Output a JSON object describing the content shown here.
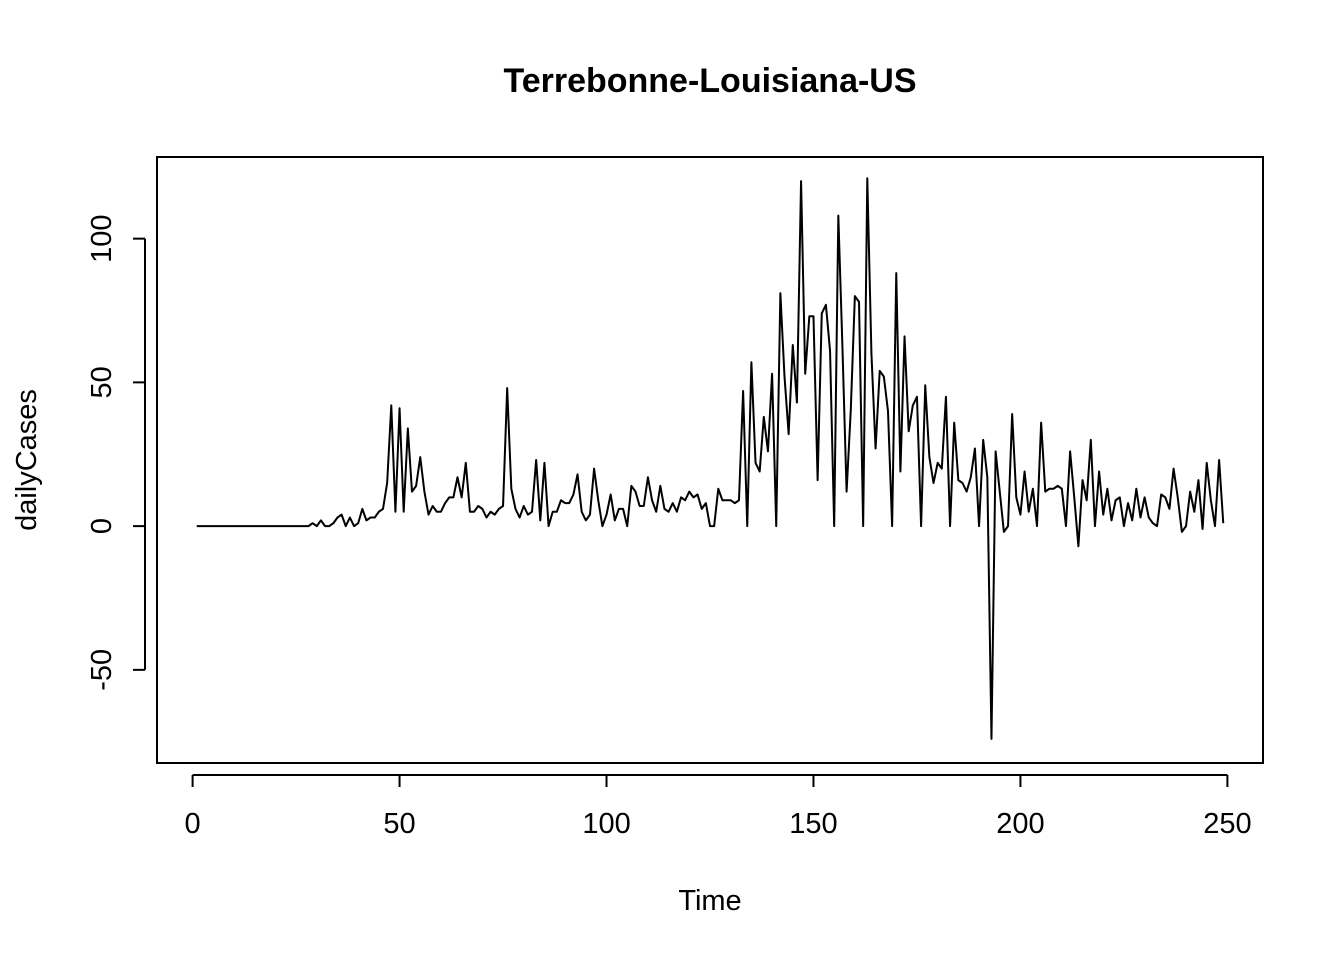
{
  "chart_data": {
    "type": "line",
    "title": "Terrebonne-Louisiana-US",
    "xlabel": "Time",
    "ylabel": "dailyCases",
    "xlim": [
      -8.6,
      258.6
    ],
    "ylim": [
      -82.4,
      128.4
    ],
    "x_ticks": [
      0,
      50,
      100,
      150,
      200,
      250
    ],
    "x_tick_labels": [
      "0",
      "50",
      "100",
      "150",
      "200",
      "250"
    ],
    "y_ticks": [
      -50,
      0,
      50,
      100
    ],
    "y_tick_labels": [
      "-50",
      "0",
      "50",
      "100"
    ],
    "grid": false,
    "legend": "none",
    "line_color": "#000000",
    "x_start": 1,
    "series": [
      {
        "values": [
          0,
          0,
          0,
          0,
          0,
          0,
          0,
          0,
          0,
          0,
          0,
          0,
          0,
          0,
          0,
          0,
          0,
          0,
          0,
          0,
          0,
          0,
          0,
          0,
          0,
          0,
          0,
          0,
          1,
          0,
          2,
          0,
          0,
          1,
          3,
          4,
          0,
          3,
          0,
          1,
          6,
          2,
          3,
          3,
          5,
          6,
          15,
          42,
          5,
          41,
          5,
          34,
          12,
          14,
          24,
          12,
          4,
          7,
          5,
          5,
          8,
          10,
          10,
          17,
          10,
          22,
          5,
          5,
          7,
          6,
          3,
          5,
          4,
          6,
          7,
          48,
          13,
          6,
          3,
          7,
          4,
          5,
          23,
          2,
          22,
          0,
          5,
          5,
          9,
          8,
          8,
          11,
          18,
          5,
          2,
          4,
          20,
          9,
          0,
          4,
          11,
          2,
          6,
          6,
          0,
          14,
          12,
          7,
          7,
          17,
          9,
          5,
          14,
          6,
          5,
          8,
          5,
          10,
          9,
          12,
          10,
          11,
          6,
          8,
          0,
          0,
          13,
          9,
          9,
          9,
          8,
          9,
          47,
          0,
          57,
          22,
          19,
          38,
          26,
          53,
          0,
          81,
          52,
          32,
          63,
          43,
          120,
          53,
          73,
          73,
          16,
          74,
          77,
          61,
          0,
          108,
          62,
          12,
          40,
          80,
          78,
          0,
          121,
          60,
          27,
          54,
          52,
          40,
          0,
          88,
          19,
          66,
          33,
          42,
          45,
          0,
          49,
          24,
          15,
          22,
          20,
          45,
          0,
          36,
          16,
          15,
          12,
          17,
          27,
          0,
          30,
          17,
          -74,
          26,
          12,
          -2,
          0,
          39,
          10,
          4,
          19,
          5,
          13,
          0,
          36,
          12,
          13,
          13,
          14,
          13,
          0,
          26,
          10,
          -7,
          16,
          9,
          30,
          0,
          19,
          4,
          13,
          2,
          9,
          10,
          0,
          8,
          2,
          13,
          3,
          10,
          3,
          1,
          0,
          11,
          10,
          6,
          20,
          10,
          -2,
          0,
          12,
          5,
          16,
          -1,
          22,
          9,
          0,
          23,
          1
        ]
      }
    ]
  }
}
